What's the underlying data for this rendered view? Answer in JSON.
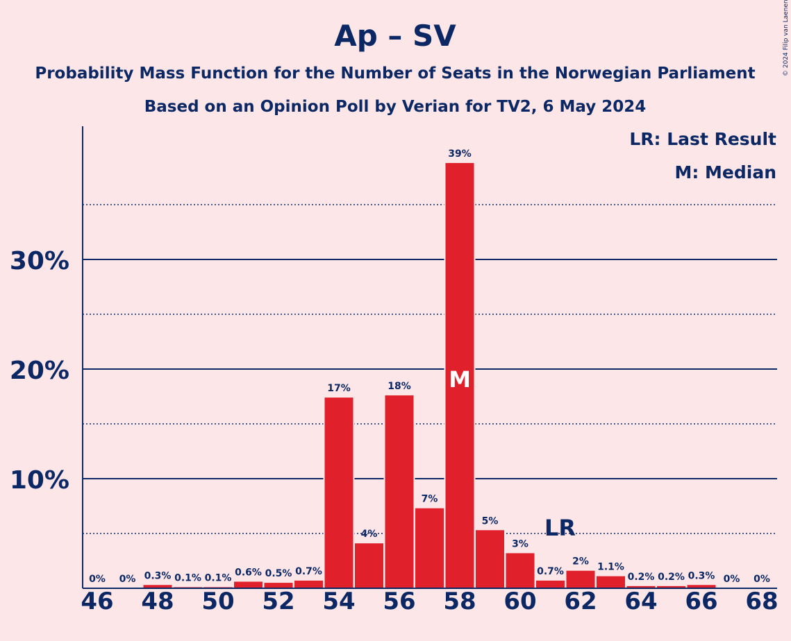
{
  "copyright": "© 2024 Filip van Laenen",
  "colors": {
    "background": "#fde6e8",
    "bar": "#e0202a",
    "text": "#0b2864"
  },
  "chart_data": {
    "type": "bar",
    "title": "Ap – SV",
    "subtitle1": "Probability Mass Function for the Number of Seats in the Norwegian Parliament",
    "subtitle2": "Based on an Opinion Poll by Verian for TV2, 6 May 2024",
    "legend": [
      "LR: Last Result",
      "M: Median"
    ],
    "legend_position": "top-right",
    "x": [
      46,
      47,
      48,
      49,
      50,
      51,
      52,
      53,
      54,
      55,
      56,
      57,
      58,
      59,
      60,
      61,
      62,
      63,
      64,
      65,
      66,
      67,
      68
    ],
    "values": [
      0,
      0,
      0.3,
      0.1,
      0.1,
      0.6,
      0.5,
      0.7,
      17.4,
      4.1,
      17.6,
      7.3,
      38.8,
      5.3,
      3.2,
      0.7,
      1.6,
      1.1,
      0.2,
      0.2,
      0.3,
      0,
      0
    ],
    "value_labels": [
      "0%",
      "0%",
      "0.3%",
      "0.1%",
      "0.1%",
      "0.6%",
      "0.5%",
      "0.7%",
      "17%",
      "4%",
      "18%",
      "7%",
      "39%",
      "5%",
      "3%",
      "0.7%",
      "2%",
      "1.1%",
      "0.2%",
      "0.2%",
      "0.3%",
      "0%",
      "0%"
    ],
    "x_tick_labels": [
      "46",
      "48",
      "50",
      "52",
      "54",
      "56",
      "58",
      "60",
      "62",
      "64",
      "66",
      "68"
    ],
    "y_tick_labels": [
      "10%",
      "20%",
      "30%"
    ],
    "y_ticks": [
      10,
      20,
      30
    ],
    "y_minor_ticks": [
      5,
      15,
      25,
      35
    ],
    "ylim": [
      0,
      42
    ],
    "median_seat": 58,
    "median_label": "M",
    "last_result_seat": 61,
    "last_result_label": "LR",
    "grid": true
  }
}
